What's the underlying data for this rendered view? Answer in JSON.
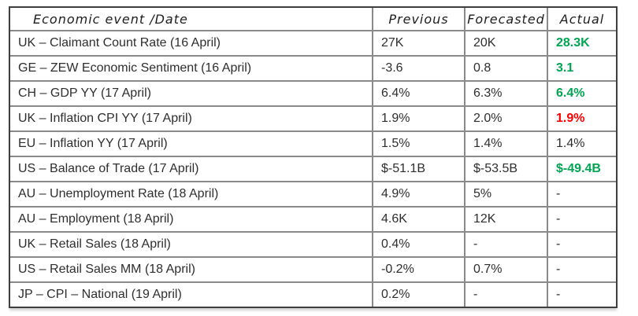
{
  "chart_data": {
    "type": "table",
    "title": "Economic event /Date",
    "columns": [
      "Economic event /Date",
      "Previous",
      "Forecasted",
      "Actual"
    ],
    "rows": [
      [
        "UK – Claimant Count Rate (16 April)",
        "27K",
        "20K",
        "28.3K"
      ],
      [
        "GE – ZEW Economic Sentiment (16 April)",
        "-3.6",
        "0.8",
        "3.1"
      ],
      [
        "CH – GDP YY (17 April)",
        "6.4%",
        "6.3%",
        "6.4%"
      ],
      [
        "UK – Inflation CPI YY (17 April)",
        "1.9%",
        "2.0%",
        "1.9%"
      ],
      [
        "EU – Inflation YY (17 April)",
        "1.5%",
        "1.4%",
        "1.4%"
      ],
      [
        "US – Balance of Trade (17 April)",
        "$-51.1B",
        "$-53.5B",
        "$-49.4B"
      ],
      [
        "AU – Unemployment Rate (18 April)",
        "4.9%",
        "5%",
        "-"
      ],
      [
        "AU – Employment (18 April)",
        "4.6K",
        "12K",
        "-"
      ],
      [
        "UK – Retail Sales (18 April)",
        "0.4%",
        "-",
        "-"
      ],
      [
        "US – Retail Sales MM (18 April)",
        "-0.2%",
        "0.7%",
        "-"
      ],
      [
        "JP – CPI – National (19 April)",
        "0.2%",
        "-",
        "-"
      ]
    ],
    "actual_value_colors": [
      "green",
      "green",
      "green",
      "red",
      "black",
      "green",
      "black",
      "black",
      "black",
      "black",
      "black"
    ],
    "style": {
      "green_hex": "#00a651",
      "red_hex": "#ff0000",
      "text_hex": "#2e2e2e",
      "outer_border_hex": "#3f3f3f",
      "inner_border_hex": "#8a8a8a"
    },
    "layout_hints": {
      "grid": true,
      "header_font": "handwritten-italic",
      "body_font": "sans-serif"
    }
  }
}
